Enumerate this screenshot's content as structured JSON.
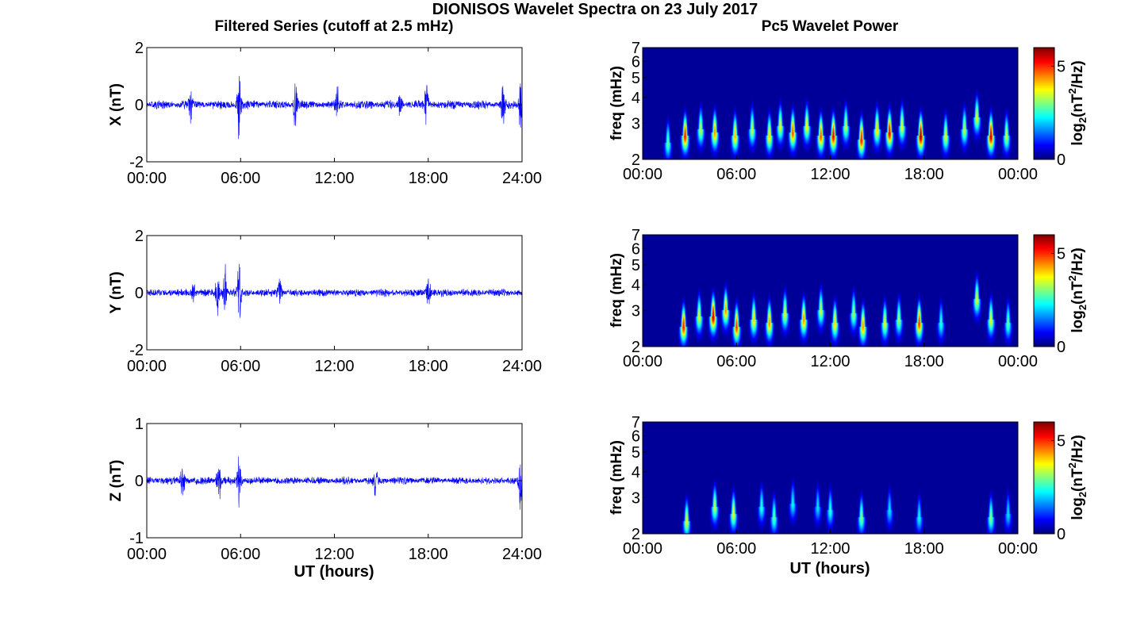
{
  "figure": {
    "title": "DIONISOS Wavelet Spectra on 23 July 2017",
    "left_column_title": "Filtered Series (cutoff at 2.5 mHz)",
    "right_column_title": "Pc5 Wavelet Power",
    "colors": {
      "series_line": "#0000ff",
      "axes": "#000000",
      "background": "#ffffff",
      "spectrum_background": "#00008f"
    }
  },
  "chart_data": [
    {
      "type": "line",
      "component": "X",
      "xlabel": "",
      "ylabel": "X (nT)",
      "xlim": [
        0,
        24
      ],
      "ylim": [
        -2,
        2
      ],
      "xticks": [
        "00:00",
        "06:00",
        "12:00",
        "18:00",
        "24:00"
      ],
      "yticks": [
        "-2",
        "0",
        "2"
      ],
      "noise_amplitude_nT": 0.18,
      "bursts": [
        {
          "t": 2.8,
          "amp": 0.6
        },
        {
          "t": 5.9,
          "amp": 1.3
        },
        {
          "t": 9.5,
          "amp": 0.8
        },
        {
          "t": 12.2,
          "amp": 0.7
        },
        {
          "t": 16.2,
          "amp": 0.6
        },
        {
          "t": 17.9,
          "amp": 0.8
        },
        {
          "t": 22.8,
          "amp": 0.9
        },
        {
          "t": 23.9,
          "amp": 1.2
        }
      ]
    },
    {
      "type": "line",
      "component": "Y",
      "xlabel": "",
      "ylabel": "Y (nT)",
      "xlim": [
        0,
        24
      ],
      "ylim": [
        -2,
        2
      ],
      "xticks": [
        "00:00",
        "06:00",
        "12:00",
        "18:00",
        "24:00"
      ],
      "yticks": [
        "-2",
        "0",
        "2"
      ],
      "noise_amplitude_nT": 0.16,
      "bursts": [
        {
          "t": 3.0,
          "amp": 0.5
        },
        {
          "t": 4.5,
          "amp": 1.1
        },
        {
          "t": 5.0,
          "amp": 1.1
        },
        {
          "t": 5.9,
          "amp": 1.4
        },
        {
          "t": 8.5,
          "amp": 0.6
        },
        {
          "t": 18.0,
          "amp": 0.7
        }
      ]
    },
    {
      "type": "line",
      "component": "Z",
      "xlabel": "UT (hours)",
      "ylabel": "Z (nT)",
      "xlim": [
        0,
        24
      ],
      "ylim": [
        -1,
        1
      ],
      "xticks": [
        "00:00",
        "06:00",
        "12:00",
        "18:00",
        "24:00"
      ],
      "yticks": [
        "-1",
        "0",
        "1"
      ],
      "noise_amplitude_nT": 0.08,
      "bursts": [
        {
          "t": 2.3,
          "amp": 0.45
        },
        {
          "t": 4.6,
          "amp": 0.5
        },
        {
          "t": 5.9,
          "amp": 0.45
        },
        {
          "t": 14.6,
          "amp": 0.35
        },
        {
          "t": 23.9,
          "amp": 0.5
        }
      ]
    },
    {
      "type": "heatmap",
      "component": "X",
      "xlabel": "",
      "ylabel": "freq (mHz)",
      "colorbar_label": "log2(nT²/Hz)",
      "colorbar_ticks": [
        "0",
        "5"
      ],
      "clim": [
        0,
        6
      ],
      "xlim": [
        0,
        24
      ],
      "ylim_mHz": [
        2,
        7
      ],
      "xticks": [
        "00:00",
        "06:00",
        "12:00",
        "18:00",
        "00:00"
      ],
      "yticks": [
        "2",
        "3",
        "4",
        "5",
        "6",
        "7"
      ],
      "blobs": [
        {
          "t": 1.6,
          "f": 2.4,
          "p": 3.0
        },
        {
          "t": 2.7,
          "f": 2.6,
          "p": 5.4
        },
        {
          "t": 3.7,
          "f": 2.8,
          "p": 3.6
        },
        {
          "t": 4.6,
          "f": 2.7,
          "p": 4.6
        },
        {
          "t": 5.9,
          "f": 2.6,
          "p": 4.4
        },
        {
          "t": 7.0,
          "f": 2.8,
          "p": 3.6
        },
        {
          "t": 8.1,
          "f": 2.6,
          "p": 4.2
        },
        {
          "t": 8.8,
          "f": 2.9,
          "p": 3.8
        },
        {
          "t": 9.6,
          "f": 2.7,
          "p": 5.0
        },
        {
          "t": 10.5,
          "f": 2.9,
          "p": 4.0
        },
        {
          "t": 11.4,
          "f": 2.6,
          "p": 5.0
        },
        {
          "t": 12.2,
          "f": 2.6,
          "p": 5.6
        },
        {
          "t": 13.0,
          "f": 2.9,
          "p": 3.6
        },
        {
          "t": 14.0,
          "f": 2.5,
          "p": 5.4
        },
        {
          "t": 15.0,
          "f": 2.8,
          "p": 4.2
        },
        {
          "t": 15.8,
          "f": 2.7,
          "p": 5.6
        },
        {
          "t": 16.6,
          "f": 2.9,
          "p": 3.8
        },
        {
          "t": 17.8,
          "f": 2.6,
          "p": 6.0
        },
        {
          "t": 19.4,
          "f": 2.6,
          "p": 3.8
        },
        {
          "t": 20.6,
          "f": 2.8,
          "p": 3.6
        },
        {
          "t": 21.4,
          "f": 3.2,
          "p": 3.8
        },
        {
          "t": 22.3,
          "f": 2.6,
          "p": 5.8
        },
        {
          "t": 23.3,
          "f": 2.6,
          "p": 3.6
        }
      ]
    },
    {
      "type": "heatmap",
      "component": "Y",
      "xlabel": "",
      "ylabel": "freq (mHz)",
      "colorbar_label": "log2(nT²/Hz)",
      "colorbar_ticks": [
        "0",
        "5"
      ],
      "clim": [
        0,
        6
      ],
      "xlim": [
        0,
        24
      ],
      "ylim_mHz": [
        2,
        7
      ],
      "xticks": [
        "00:00",
        "06:00",
        "12:00",
        "18:00",
        "00:00"
      ],
      "yticks": [
        "2",
        "3",
        "4",
        "5",
        "6",
        "7"
      ],
      "blobs": [
        {
          "t": 2.6,
          "f": 2.5,
          "p": 5.4
        },
        {
          "t": 3.6,
          "f": 2.8,
          "p": 3.8
        },
        {
          "t": 4.5,
          "f": 2.8,
          "p": 5.8
        },
        {
          "t": 5.3,
          "f": 3.0,
          "p": 4.6
        },
        {
          "t": 6.0,
          "f": 2.5,
          "p": 5.2
        },
        {
          "t": 7.1,
          "f": 2.7,
          "p": 4.2
        },
        {
          "t": 8.1,
          "f": 2.6,
          "p": 4.6
        },
        {
          "t": 9.1,
          "f": 2.9,
          "p": 3.8
        },
        {
          "t": 10.3,
          "f": 2.7,
          "p": 4.6
        },
        {
          "t": 11.4,
          "f": 3.0,
          "p": 3.6
        },
        {
          "t": 12.3,
          "f": 2.6,
          "p": 4.2
        },
        {
          "t": 13.5,
          "f": 2.9,
          "p": 3.4
        },
        {
          "t": 14.1,
          "f": 2.5,
          "p": 4.6
        },
        {
          "t": 15.5,
          "f": 2.6,
          "p": 3.8
        },
        {
          "t": 16.4,
          "f": 2.7,
          "p": 3.4
        },
        {
          "t": 17.7,
          "f": 2.6,
          "p": 5.2
        },
        {
          "t": 19.1,
          "f": 2.6,
          "p": 2.6
        },
        {
          "t": 21.4,
          "f": 3.4,
          "p": 3.8
        },
        {
          "t": 22.3,
          "f": 2.7,
          "p": 3.8
        },
        {
          "t": 23.4,
          "f": 2.6,
          "p": 3.0
        }
      ]
    },
    {
      "type": "heatmap",
      "component": "Z",
      "xlabel": "UT (hours)",
      "ylabel": "freq (mHz)",
      "colorbar_label": "log2(nT²/Hz)",
      "colorbar_ticks": [
        "0",
        "5"
      ],
      "clim": [
        0,
        6
      ],
      "xlim": [
        0,
        24
      ],
      "ylim_mHz": [
        2,
        7
      ],
      "xticks": [
        "00:00",
        "06:00",
        "12:00",
        "18:00",
        "00:00"
      ],
      "yticks": [
        "2",
        "3",
        "4",
        "5",
        "6",
        "7"
      ],
      "blobs": [
        {
          "t": 2.8,
          "f": 2.3,
          "p": 3.8
        },
        {
          "t": 4.6,
          "f": 2.7,
          "p": 3.6
        },
        {
          "t": 5.8,
          "f": 2.5,
          "p": 3.8
        },
        {
          "t": 7.6,
          "f": 2.7,
          "p": 2.6
        },
        {
          "t": 8.4,
          "f": 2.4,
          "p": 3.0
        },
        {
          "t": 9.6,
          "f": 2.8,
          "p": 2.4
        },
        {
          "t": 11.2,
          "f": 2.7,
          "p": 2.2
        },
        {
          "t": 12.0,
          "f": 2.6,
          "p": 2.6
        },
        {
          "t": 14.0,
          "f": 2.4,
          "p": 3.2
        },
        {
          "t": 15.8,
          "f": 2.6,
          "p": 2.2
        },
        {
          "t": 17.7,
          "f": 2.4,
          "p": 2.4
        },
        {
          "t": 22.3,
          "f": 2.4,
          "p": 3.2
        },
        {
          "t": 23.4,
          "f": 2.5,
          "p": 2.2
        }
      ]
    }
  ]
}
